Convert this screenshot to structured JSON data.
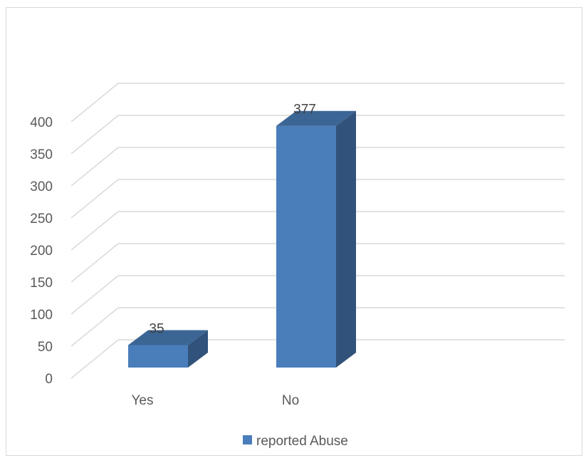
{
  "chart_data": {
    "type": "bar",
    "style": "3d-column",
    "categories": [
      "Yes",
      "No"
    ],
    "series": [
      {
        "name": "reported Abuse",
        "values": [
          35,
          377
        ],
        "color": "#4a7ebb"
      }
    ],
    "data_labels": [
      "35",
      "377"
    ],
    "y_ticks": [
      "0",
      "50",
      "100",
      "150",
      "200",
      "250",
      "300",
      "350",
      "400"
    ],
    "ylim": [
      0,
      400
    ],
    "grid": true,
    "legend_position": "bottom",
    "colors": {
      "front": "#4a7ebb",
      "side": "#31527a",
      "top": "#3b6594",
      "grid": "#d9d9d9"
    }
  }
}
